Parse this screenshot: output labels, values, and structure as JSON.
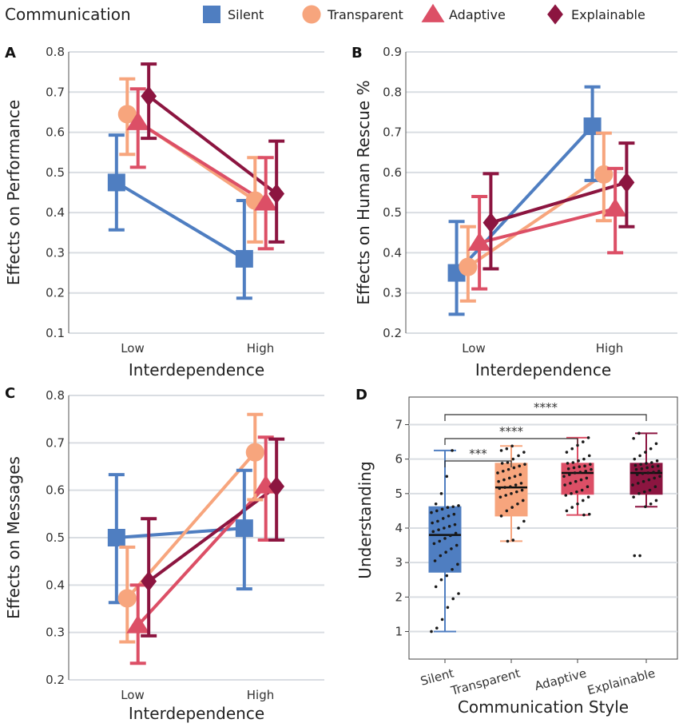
{
  "legend": {
    "title": "Communication",
    "items": [
      {
        "name": "Silent",
        "color": "#4f7ec1",
        "marker": "square"
      },
      {
        "name": "Transparent",
        "color": "#f7a57d",
        "marker": "circle"
      },
      {
        "name": "Adaptive",
        "color": "#dc4f66",
        "marker": "triangle"
      },
      {
        "name": "Explainable",
        "color": "#8c1540",
        "marker": "diamond"
      }
    ]
  },
  "chart_data": [
    {
      "panel": "A",
      "type": "line",
      "xlabel": "Interdependence",
      "ylabel": "Effects on Performance",
      "categories": [
        "Low",
        "High"
      ],
      "ylim": [
        0.1,
        0.8
      ],
      "yticks": [
        "0.1",
        "0.2",
        "0.3",
        "0.4",
        "0.5",
        "0.6",
        "0.7",
        "0.8"
      ],
      "series": [
        {
          "name": "Silent",
          "values": [
            0.475,
            0.285
          ],
          "err_low": [
            0.357,
            0.187
          ],
          "err_high": [
            0.593,
            0.43
          ]
        },
        {
          "name": "Transparent",
          "values": [
            0.645,
            0.43
          ],
          "err_low": [
            0.545,
            0.327
          ],
          "err_high": [
            0.733,
            0.537
          ]
        },
        {
          "name": "Adaptive",
          "values": [
            0.625,
            0.425
          ],
          "err_low": [
            0.513,
            0.31
          ],
          "err_high": [
            0.708,
            0.537
          ]
        },
        {
          "name": "Explainable",
          "values": [
            0.69,
            0.447
          ],
          "err_low": [
            0.585,
            0.327
          ],
          "err_high": [
            0.77,
            0.578
          ]
        }
      ]
    },
    {
      "panel": "B",
      "type": "line",
      "xlabel": "Interdependence",
      "ylabel": "Effects on Human Rescue %",
      "categories": [
        "Low",
        "High"
      ],
      "ylim": [
        0.2,
        0.9
      ],
      "yticks": [
        "0.2",
        "0.3",
        "0.4",
        "0.5",
        "0.6",
        "0.7",
        "0.8",
        "0.9"
      ],
      "series": [
        {
          "name": "Silent",
          "values": [
            0.35,
            0.715
          ],
          "err_low": [
            0.247,
            0.58
          ],
          "err_high": [
            0.478,
            0.813
          ]
        },
        {
          "name": "Transparent",
          "values": [
            0.365,
            0.595
          ],
          "err_low": [
            0.28,
            0.48
          ],
          "err_high": [
            0.465,
            0.698
          ]
        },
        {
          "name": "Adaptive",
          "values": [
            0.425,
            0.51
          ],
          "err_low": [
            0.31,
            0.4
          ],
          "err_high": [
            0.54,
            0.61
          ]
        },
        {
          "name": "Explainable",
          "values": [
            0.475,
            0.575
          ],
          "err_low": [
            0.36,
            0.465
          ],
          "err_high": [
            0.597,
            0.673
          ]
        }
      ]
    },
    {
      "panel": "C",
      "type": "line",
      "xlabel": "Interdependence",
      "ylabel": "Effects on Messages",
      "categories": [
        "Low",
        "High"
      ],
      "ylim": [
        0.2,
        0.8
      ],
      "yticks": [
        "0.2",
        "0.3",
        "0.4",
        "0.5",
        "0.6",
        "0.7",
        "0.8"
      ],
      "series": [
        {
          "name": "Silent",
          "values": [
            0.5,
            0.52
          ],
          "err_low": [
            0.363,
            0.392
          ],
          "err_high": [
            0.633,
            0.642
          ]
        },
        {
          "name": "Transparent",
          "values": [
            0.372,
            0.68
          ],
          "err_low": [
            0.28,
            0.58
          ],
          "err_high": [
            0.48,
            0.76
          ]
        },
        {
          "name": "Adaptive",
          "values": [
            0.315,
            0.61
          ],
          "err_low": [
            0.235,
            0.495
          ],
          "err_high": [
            0.4,
            0.712
          ]
        },
        {
          "name": "Explainable",
          "values": [
            0.408,
            0.608
          ],
          "err_low": [
            0.293,
            0.495
          ],
          "err_high": [
            0.54,
            0.708
          ]
        }
      ]
    },
    {
      "panel": "D",
      "type": "box",
      "xlabel": "Communication Style",
      "ylabel": "Understanding",
      "categories": [
        "Silent",
        "Transparent",
        "Adaptive",
        "Explainable"
      ],
      "ylim": [
        0.2,
        7.8
      ],
      "yticks": [
        "1",
        "2",
        "3",
        "4",
        "5",
        "6",
        "7"
      ],
      "boxes": [
        {
          "name": "Silent",
          "whisker_low": 1.0,
          "q1": 2.72,
          "median": 3.8,
          "q3": 4.62,
          "whisker_high": 6.25
        },
        {
          "name": "Transparent",
          "whisker_low": 3.62,
          "q1": 4.35,
          "median": 5.18,
          "q3": 5.88,
          "whisker_high": 6.38
        },
        {
          "name": "Adaptive",
          "whisker_low": 4.38,
          "q1": 4.98,
          "median": 5.6,
          "q3": 5.88,
          "whisker_high": 6.62
        },
        {
          "name": "Explainable",
          "whisker_low": 4.62,
          "q1": 4.98,
          "median": 5.6,
          "q3": 5.88,
          "whisker_high": 6.75
        }
      ],
      "outliers": [
        {
          "group": "Explainable",
          "values": [
            3.2,
            3.2
          ]
        }
      ],
      "points": [
        {
          "group": "Silent",
          "values": [
            1.0,
            1.1,
            1.35,
            1.7,
            1.95,
            2.1,
            2.3,
            2.5,
            2.62,
            2.8,
            2.95,
            3.05,
            3.2,
            3.3,
            3.4,
            3.5,
            3.55,
            3.62,
            3.7,
            3.78,
            3.85,
            3.9,
            3.95,
            4.0,
            4.05,
            4.1,
            4.15,
            4.2,
            4.28,
            4.35,
            4.4,
            4.45,
            4.5,
            4.55,
            4.6,
            4.62,
            4.65,
            4.7,
            5.0,
            5.5,
            6.25
          ]
        },
        {
          "group": "Transparent",
          "values": [
            3.62,
            3.65,
            4.0,
            4.2,
            4.35,
            4.5,
            4.6,
            4.7,
            4.8,
            4.9,
            4.95,
            5.0,
            5.05,
            5.1,
            5.15,
            5.18,
            5.2,
            5.25,
            5.3,
            5.35,
            5.4,
            5.45,
            5.5,
            5.55,
            5.6,
            5.65,
            5.7,
            5.75,
            5.8,
            5.85,
            5.88,
            5.9,
            6.0,
            6.1,
            6.2,
            6.25,
            6.3,
            6.38
          ]
        },
        {
          "group": "Adaptive",
          "values": [
            4.38,
            4.4,
            4.5,
            4.6,
            4.7,
            4.8,
            4.9,
            4.95,
            5.0,
            5.05,
            5.1,
            5.2,
            5.25,
            5.3,
            5.35,
            5.4,
            5.45,
            5.5,
            5.55,
            5.6,
            5.62,
            5.65,
            5.7,
            5.72,
            5.75,
            5.78,
            5.8,
            5.85,
            5.88,
            5.9,
            5.95,
            6.0,
            6.1,
            6.2,
            6.3,
            6.4,
            6.5,
            6.62
          ]
        },
        {
          "group": "Explainable",
          "values": [
            3.2,
            3.2,
            4.62,
            4.7,
            4.8,
            4.9,
            5.0,
            5.05,
            5.1,
            5.2,
            5.25,
            5.3,
            5.35,
            5.4,
            5.45,
            5.5,
            5.55,
            5.58,
            5.6,
            5.62,
            5.65,
            5.7,
            5.72,
            5.75,
            5.78,
            5.8,
            5.82,
            5.85,
            5.88,
            5.9,
            5.95,
            6.0,
            6.1,
            6.2,
            6.3,
            6.45,
            6.6,
            6.75
          ]
        }
      ],
      "significance": [
        {
          "from": "Silent",
          "to": "Transparent",
          "label": "***"
        },
        {
          "from": "Silent",
          "to": "Adaptive",
          "label": "****"
        },
        {
          "from": "Silent",
          "to": "Explainable",
          "label": "****"
        }
      ]
    }
  ]
}
